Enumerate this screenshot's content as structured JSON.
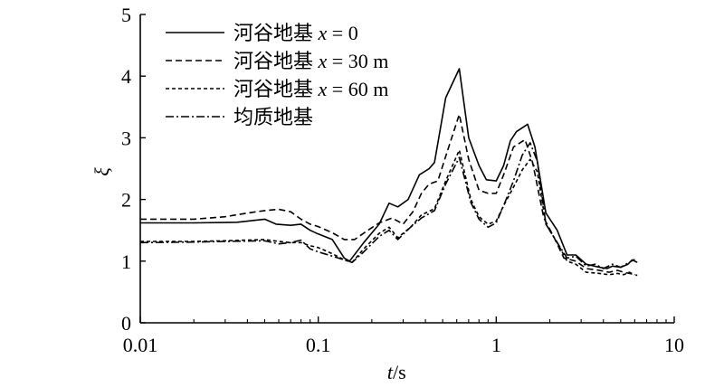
{
  "chart_data": {
    "type": "line",
    "title": "",
    "xlabel_italic": "t",
    "xlabel_unit": "/s",
    "ylabel": "ξ",
    "x_scale": "log",
    "xlim": [
      0.01,
      10
    ],
    "ylim": [
      0,
      5
    ],
    "x_ticks": [
      {
        "value": 0.01,
        "label": "0.01"
      },
      {
        "value": 0.1,
        "label": "0.1"
      },
      {
        "value": 1,
        "label": "1"
      },
      {
        "value": 10,
        "label": "10"
      }
    ],
    "y_ticks": [
      {
        "value": 0,
        "label": "0"
      },
      {
        "value": 1,
        "label": "1"
      },
      {
        "value": 2,
        "label": "2"
      },
      {
        "value": 3,
        "label": "3"
      },
      {
        "value": 4,
        "label": "4"
      },
      {
        "value": 5,
        "label": "5"
      }
    ],
    "grid": false,
    "legend_position": "top-left",
    "series": [
      {
        "name_prefix": "河谷地基 ",
        "name_var": "x",
        "name_suffix": " = 0",
        "style": "solid",
        "points": [
          [
            0.01,
            1.62
          ],
          [
            0.02,
            1.62
          ],
          [
            0.035,
            1.63
          ],
          [
            0.05,
            1.68
          ],
          [
            0.058,
            1.6
          ],
          [
            0.07,
            1.58
          ],
          [
            0.08,
            1.6
          ],
          [
            0.09,
            1.5
          ],
          [
            0.1,
            1.44
          ],
          [
            0.12,
            1.35
          ],
          [
            0.14,
            1.05
          ],
          [
            0.15,
            1.0
          ],
          [
            0.18,
            1.3
          ],
          [
            0.22,
            1.6
          ],
          [
            0.25,
            1.94
          ],
          [
            0.28,
            1.88
          ],
          [
            0.32,
            2.0
          ],
          [
            0.37,
            2.4
          ],
          [
            0.42,
            2.5
          ],
          [
            0.45,
            2.6
          ],
          [
            0.52,
            3.65
          ],
          [
            0.62,
            4.12
          ],
          [
            0.7,
            3.0
          ],
          [
            0.8,
            2.55
          ],
          [
            0.88,
            2.32
          ],
          [
            1.0,
            2.3
          ],
          [
            1.1,
            2.55
          ],
          [
            1.2,
            2.95
          ],
          [
            1.3,
            3.1
          ],
          [
            1.5,
            3.22
          ],
          [
            1.65,
            2.85
          ],
          [
            1.9,
            1.78
          ],
          [
            2.2,
            1.5
          ],
          [
            2.5,
            1.1
          ],
          [
            2.8,
            1.1
          ],
          [
            3.2,
            0.95
          ],
          [
            3.8,
            0.9
          ],
          [
            4.2,
            0.88
          ],
          [
            4.5,
            0.92
          ],
          [
            5.0,
            0.9
          ],
          [
            5.5,
            0.95
          ],
          [
            5.8,
            1.02
          ],
          [
            6.2,
            0.98
          ]
        ]
      },
      {
        "name_prefix": "河谷地基 ",
        "name_var": "x",
        "name_suffix": " = 30 m",
        "style": "dash",
        "points": [
          [
            0.01,
            1.68
          ],
          [
            0.02,
            1.68
          ],
          [
            0.03,
            1.72
          ],
          [
            0.04,
            1.78
          ],
          [
            0.05,
            1.82
          ],
          [
            0.06,
            1.84
          ],
          [
            0.07,
            1.8
          ],
          [
            0.08,
            1.68
          ],
          [
            0.09,
            1.6
          ],
          [
            0.1,
            1.56
          ],
          [
            0.12,
            1.46
          ],
          [
            0.14,
            1.35
          ],
          [
            0.16,
            1.35
          ],
          [
            0.19,
            1.5
          ],
          [
            0.22,
            1.62
          ],
          [
            0.26,
            1.7
          ],
          [
            0.3,
            1.6
          ],
          [
            0.34,
            1.8
          ],
          [
            0.38,
            2.1
          ],
          [
            0.42,
            2.25
          ],
          [
            0.47,
            2.3
          ],
          [
            0.52,
            2.7
          ],
          [
            0.62,
            3.38
          ],
          [
            0.7,
            2.65
          ],
          [
            0.8,
            2.15
          ],
          [
            0.9,
            2.1
          ],
          [
            1.0,
            2.1
          ],
          [
            1.1,
            2.4
          ],
          [
            1.25,
            2.85
          ],
          [
            1.45,
            2.97
          ],
          [
            1.6,
            2.6
          ],
          [
            1.85,
            1.7
          ],
          [
            2.1,
            1.4
          ],
          [
            2.4,
            1.05
          ],
          [
            2.8,
            1.0
          ],
          [
            3.2,
            0.88
          ],
          [
            3.8,
            0.85
          ],
          [
            4.3,
            0.82
          ],
          [
            4.8,
            0.85
          ],
          [
            5.2,
            0.82
          ],
          [
            5.6,
            0.8
          ],
          [
            6.2,
            0.77
          ]
        ]
      },
      {
        "name_prefix": "河谷地基 ",
        "name_var": "x",
        "name_suffix": " = 60 m",
        "style": "shortdash",
        "points": [
          [
            0.01,
            1.32
          ],
          [
            0.02,
            1.32
          ],
          [
            0.03,
            1.33
          ],
          [
            0.05,
            1.35
          ],
          [
            0.06,
            1.32
          ],
          [
            0.07,
            1.3
          ],
          [
            0.08,
            1.3
          ],
          [
            0.09,
            1.25
          ],
          [
            0.1,
            1.22
          ],
          [
            0.12,
            1.12
          ],
          [
            0.14,
            1.02
          ],
          [
            0.155,
            0.98
          ],
          [
            0.18,
            1.2
          ],
          [
            0.22,
            1.45
          ],
          [
            0.25,
            1.55
          ],
          [
            0.28,
            1.38
          ],
          [
            0.33,
            1.55
          ],
          [
            0.38,
            1.75
          ],
          [
            0.45,
            1.85
          ],
          [
            0.52,
            2.3
          ],
          [
            0.62,
            2.8
          ],
          [
            0.72,
            2.0
          ],
          [
            0.8,
            1.72
          ],
          [
            0.9,
            1.6
          ],
          [
            1.0,
            1.65
          ],
          [
            1.1,
            1.9
          ],
          [
            1.25,
            2.2
          ],
          [
            1.4,
            2.48
          ],
          [
            1.55,
            2.65
          ],
          [
            1.7,
            2.45
          ],
          [
            1.9,
            1.6
          ],
          [
            2.2,
            1.3
          ],
          [
            2.5,
            1.0
          ],
          [
            2.8,
            0.95
          ],
          [
            3.2,
            0.82
          ],
          [
            3.8,
            0.8
          ],
          [
            4.3,
            0.78
          ],
          [
            4.8,
            0.8
          ],
          [
            5.2,
            0.78
          ],
          [
            5.6,
            0.82
          ],
          [
            6.0,
            0.78
          ]
        ]
      },
      {
        "name_prefix": "均质地基",
        "name_var": "",
        "name_suffix": "",
        "style": "dashdot",
        "points": [
          [
            0.01,
            1.3
          ],
          [
            0.02,
            1.31
          ],
          [
            0.03,
            1.32
          ],
          [
            0.05,
            1.33
          ],
          [
            0.06,
            1.28
          ],
          [
            0.07,
            1.3
          ],
          [
            0.08,
            1.34
          ],
          [
            0.09,
            1.2
          ],
          [
            0.1,
            1.15
          ],
          [
            0.12,
            1.08
          ],
          [
            0.14,
            1.02
          ],
          [
            0.155,
            0.98
          ],
          [
            0.18,
            1.15
          ],
          [
            0.22,
            1.4
          ],
          [
            0.25,
            1.5
          ],
          [
            0.28,
            1.35
          ],
          [
            0.33,
            1.55
          ],
          [
            0.38,
            1.7
          ],
          [
            0.45,
            1.82
          ],
          [
            0.52,
            2.25
          ],
          [
            0.62,
            2.68
          ],
          [
            0.72,
            1.95
          ],
          [
            0.8,
            1.68
          ],
          [
            0.9,
            1.55
          ],
          [
            1.0,
            1.62
          ],
          [
            1.1,
            1.9
          ],
          [
            1.25,
            2.3
          ],
          [
            1.4,
            2.72
          ],
          [
            1.55,
            2.92
          ],
          [
            1.7,
            2.62
          ],
          [
            1.9,
            1.6
          ],
          [
            2.2,
            1.3
          ],
          [
            2.5,
            1.05
          ],
          [
            2.8,
            1.08
          ],
          [
            3.2,
            0.92
          ],
          [
            3.6,
            0.95
          ],
          [
            4.0,
            0.88
          ],
          [
            4.5,
            0.95
          ],
          [
            5.0,
            0.9
          ],
          [
            5.5,
            0.97
          ],
          [
            6.0,
            1.03
          ]
        ]
      }
    ]
  }
}
